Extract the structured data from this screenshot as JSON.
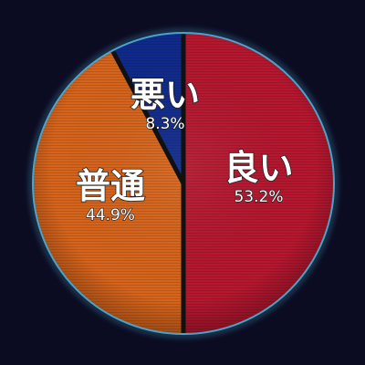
{
  "chart_data": {
    "type": "pie",
    "title": "",
    "slices": [
      {
        "label": "良い",
        "value": 53.2,
        "value_label": "53.2%",
        "color": "#b5172f"
      },
      {
        "label": "普通",
        "value": 44.9,
        "value_label": "44.9%",
        "color": "#d6641c"
      },
      {
        "label": "悪い",
        "value": 8.3,
        "value_label": "8.3%",
        "color": "#102a8c"
      }
    ],
    "start_angle": "12 o'clock",
    "direction": "clockwise",
    "legend": "none",
    "background_color": "#0b0c22",
    "border_color": "#4aa3c8",
    "separator_color": "#111111"
  }
}
